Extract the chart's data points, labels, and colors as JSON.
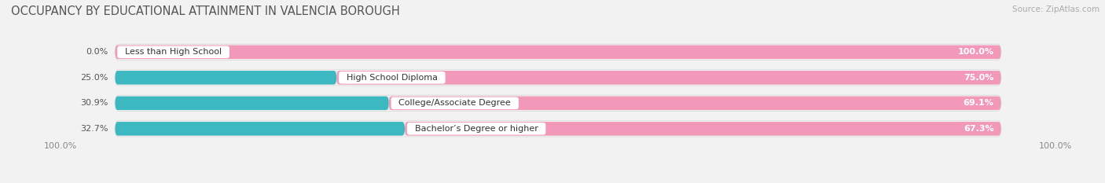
{
  "title": "OCCUPANCY BY EDUCATIONAL ATTAINMENT IN VALENCIA BOROUGH",
  "source": "Source: ZipAtlas.com",
  "categories": [
    "Less than High School",
    "High School Diploma",
    "College/Associate Degree",
    "Bachelor’s Degree or higher"
  ],
  "owner_pct": [
    0.0,
    25.0,
    30.9,
    32.7
  ],
  "renter_pct": [
    100.0,
    75.0,
    69.1,
    67.3
  ],
  "owner_color": "#3CB8C0",
  "renter_color": "#F298B8",
  "bg_color": "#f2f2f2",
  "bar_bg_color": "#e8e8e8",
  "bar_outer_bg": "#ffffff",
  "title_fontsize": 10.5,
  "label_fontsize": 8.0,
  "tick_fontsize": 8.0,
  "legend_fontsize": 8.0,
  "left_axis_label": "100.0%",
  "right_axis_label": "100.0%"
}
